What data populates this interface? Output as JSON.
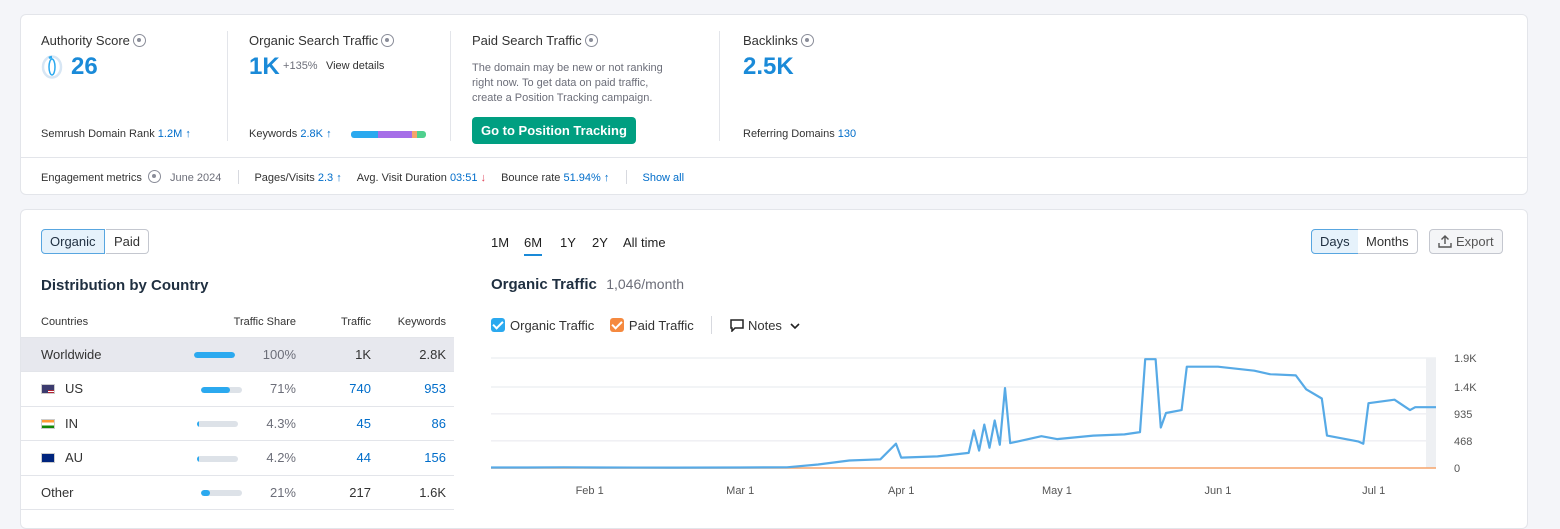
{
  "overview": {
    "authority": {
      "label": "Authority Score",
      "value": "26",
      "rank_label": "Semrush Domain Rank",
      "rank_value": "1.2M"
    },
    "organic": {
      "label": "Organic Search Traffic",
      "value": "1K",
      "delta": "+135%",
      "link": "View details",
      "keywords_label": "Keywords",
      "keywords_value": "2.8K"
    },
    "paid": {
      "label": "Paid Search Traffic",
      "line1": "The domain may be new or not ranking",
      "line2": "right now. To get data on paid traffic,",
      "line3": "create a Position Tracking campaign.",
      "button": "Go to Position Tracking"
    },
    "backlinks": {
      "label": "Backlinks",
      "value": "2.5K",
      "ref_label": "Referring Domains",
      "ref_value": "130"
    }
  },
  "engagement": {
    "label": "Engagement metrics",
    "date": "June 2024",
    "pages_label": "Pages/Visits",
    "pages_value": "2.3",
    "duration_label": "Avg. Visit Duration",
    "duration_value": "03:51",
    "bounce_label": "Bounce rate",
    "bounce_value": "51.94%",
    "show_all": "Show all"
  },
  "tabs": {
    "organic": "Organic",
    "paid": "Paid"
  },
  "distribution": {
    "title": "Distribution by Country",
    "headers": {
      "country": "Countries",
      "share": "Traffic Share",
      "traffic": "Traffic",
      "keywords": "Keywords"
    },
    "rows": [
      {
        "country": "Worldwide",
        "share": "100%",
        "share_frac": 1.0,
        "traffic": "1K",
        "keywords": "2.8K"
      },
      {
        "country": "US",
        "share": "71%",
        "share_frac": 0.71,
        "traffic": "740",
        "keywords": "953"
      },
      {
        "country": "IN",
        "share": "4.3%",
        "share_frac": 0.043,
        "traffic": "45",
        "keywords": "86"
      },
      {
        "country": "AU",
        "share": "4.2%",
        "share_frac": 0.042,
        "traffic": "44",
        "keywords": "156"
      },
      {
        "country": "Other",
        "share": "21%",
        "share_frac": 0.21,
        "traffic": "217",
        "keywords": "1.6K"
      }
    ]
  },
  "periods": [
    "1M",
    "6M",
    "1Y",
    "2Y",
    "All time"
  ],
  "granularity": {
    "days": "Days",
    "months": "Months",
    "export": "Export"
  },
  "chart_header": {
    "title": "Organic Traffic",
    "value": "1,046/month"
  },
  "legend": {
    "organic": "Organic Traffic",
    "paid": "Paid Traffic",
    "notes": "Notes"
  },
  "colors": {
    "organic": "#57aae6",
    "paid": "#f5a46a",
    "accent": "#1a8ad8",
    "green": "#009f81"
  },
  "chart_data": {
    "type": "line",
    "x_ticks": [
      "Feb 1",
      "Mar 1",
      "Apr 1",
      "May 1",
      "Jun 1",
      "Jul 1"
    ],
    "y_ticks": [
      "1.9K",
      "1.4K",
      "935",
      "468",
      "0"
    ],
    "ylim": [
      0,
      1900
    ],
    "x_range": [
      "Jan 13",
      "Jul 13"
    ],
    "series": [
      {
        "name": "Organic Traffic",
        "points": [
          [
            "Jan 13",
            8
          ],
          [
            "Jan 20",
            9
          ],
          [
            "Jan 27",
            12
          ],
          [
            "Feb 3",
            8
          ],
          [
            "Feb 17",
            7
          ],
          [
            "Mar 1",
            8
          ],
          [
            "Mar 10",
            12
          ],
          [
            "Mar 16",
            60
          ],
          [
            "Mar 22",
            130
          ],
          [
            "Mar 28",
            150
          ],
          [
            "Mar 31",
            420
          ],
          [
            "Apr 1",
            180
          ],
          [
            "Apr 8",
            200
          ],
          [
            "Apr 14",
            260
          ],
          [
            "Apr 15",
            650
          ],
          [
            "Apr 16",
            300
          ],
          [
            "Apr 17",
            750
          ],
          [
            "Apr 18",
            350
          ],
          [
            "Apr 19",
            820
          ],
          [
            "Apr 20",
            400
          ],
          [
            "Apr 21",
            1380
          ],
          [
            "Apr 22",
            430
          ],
          [
            "Apr 28",
            550
          ],
          [
            "May 1",
            500
          ],
          [
            "May 8",
            560
          ],
          [
            "May 14",
            580
          ],
          [
            "May 17",
            620
          ],
          [
            "May 18",
            1880
          ],
          [
            "May 20",
            1880
          ],
          [
            "May 21",
            700
          ],
          [
            "May 22",
            950
          ],
          [
            "May 25",
            1000
          ],
          [
            "May 26",
            1750
          ],
          [
            "Jun 1",
            1750
          ],
          [
            "Jun 8",
            1680
          ],
          [
            "Jun 11",
            1620
          ],
          [
            "Jun 16",
            1600
          ],
          [
            "Jun 18",
            1360
          ],
          [
            "Jun 21",
            1200
          ],
          [
            "Jun 22",
            560
          ],
          [
            "Jun 28",
            460
          ],
          [
            "Jun 29",
            420
          ],
          [
            "Jun 30",
            1120
          ],
          [
            "Jul 5",
            1180
          ],
          [
            "Jul 8",
            1000
          ],
          [
            "Jul 9",
            1050
          ],
          [
            "Jul 13",
            1050
          ]
        ]
      },
      {
        "name": "Paid Traffic",
        "points": [
          [
            "Jan 13",
            0
          ],
          [
            "Jul 13",
            0
          ]
        ]
      }
    ]
  }
}
